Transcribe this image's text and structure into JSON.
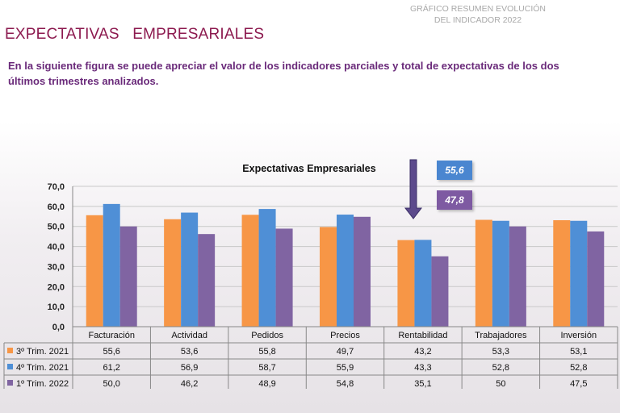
{
  "header": {
    "corner_line1": "GRÁFICO RESUMEN EVOLUCIÓN",
    "corner_line2": "DEL INDICADOR 2022",
    "title": "EXPECTATIVAS   EMPRESARIALES",
    "intro": "En la siguiente figura se puede apreciar el valor de los indicadores parciales y total de expectativas de los dos últimos trimestres analizados."
  },
  "callouts": {
    "value_a": "55,6",
    "value_b": "47,8"
  },
  "colors": {
    "series1": "#f79646",
    "series2": "#4f8fd6",
    "series3": "#8064a2",
    "arrow": "#5c4a8c"
  },
  "chart_data": {
    "type": "bar",
    "title": "Expectativas Empresariales",
    "categories": [
      "Facturación",
      "Actividad",
      "Pedidos",
      "Precios",
      "Rentabilidad",
      "Trabajadores",
      "Inversión"
    ],
    "series": [
      {
        "name": "3º Trim. 2021",
        "values": [
          55.6,
          53.6,
          55.8,
          49.7,
          43.2,
          53.3,
          53.1
        ],
        "labels": [
          "55,6",
          "53,6",
          "55,8",
          "49,7",
          "43,2",
          "53,3",
          "53,1"
        ]
      },
      {
        "name": "4º Trim. 2021",
        "values": [
          61.2,
          56.9,
          58.7,
          55.9,
          43.3,
          52.8,
          52.8
        ],
        "labels": [
          "61,2",
          "56,9",
          "58,7",
          "55,9",
          "43,3",
          "52,8",
          "52,8"
        ]
      },
      {
        "name": "1º Trim. 2022",
        "values": [
          50.0,
          46.2,
          48.9,
          54.8,
          35.1,
          50.0,
          47.5
        ],
        "labels": [
          "50,0",
          "46,2",
          "48,9",
          "54,8",
          "35,1",
          "50",
          "47,5"
        ]
      }
    ],
    "ylim": [
      0,
      70
    ],
    "yticks": [
      "0,0",
      "10,0",
      "20,0",
      "30,0",
      "40,0",
      "50,0",
      "60,0",
      "70,0"
    ],
    "grid": true,
    "legend": "data-table"
  }
}
